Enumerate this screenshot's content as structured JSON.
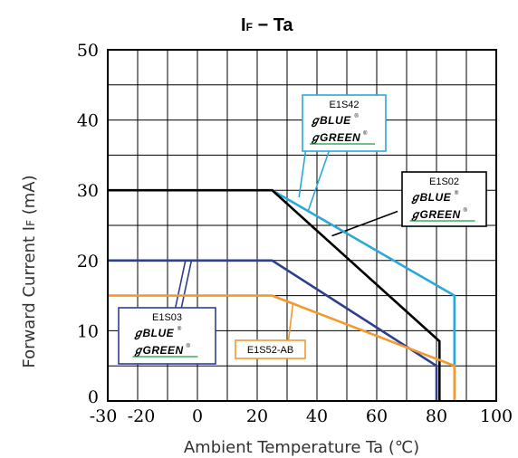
{
  "chart_data": {
    "type": "line",
    "title_main": "I",
    "title_sub": "F",
    "title_rest": " − Ta",
    "xlabel": "Ambient Temperature  Ta (℃)",
    "ylabel_main": "Forward Current  I",
    "ylabel_sub": "F",
    "ylabel_unit": " (mA)",
    "xlim": [
      -30,
      100
    ],
    "ylim": [
      0,
      50
    ],
    "x_ticks": [
      -30,
      -20,
      0,
      20,
      40,
      60,
      80,
      100
    ],
    "x_tick_labels": [
      "-30",
      "-20",
      "0",
      "20",
      "40",
      "60",
      "80",
      "100"
    ],
    "y_ticks": [
      0,
      10,
      20,
      30,
      40,
      50
    ],
    "y_tick_labels": [
      "0",
      "10",
      "20",
      "30",
      "40",
      "50"
    ],
    "x_grid": [
      -30,
      -20,
      -10,
      0,
      10,
      20,
      30,
      40,
      50,
      60,
      70,
      80,
      90,
      100
    ],
    "y_grid": [
      0,
      5,
      10,
      15,
      20,
      25,
      30,
      35,
      40,
      45,
      50
    ],
    "grid": true,
    "series": [
      {
        "name": "E1S42",
        "color": "#2aa8dc",
        "x": [
          25,
          86,
          86
        ],
        "y": [
          30,
          15,
          0
        ]
      },
      {
        "name": "E1S02",
        "color": "#000000",
        "x": [
          -30,
          25,
          81,
          81
        ],
        "y": [
          30,
          30,
          8.5,
          0
        ]
      },
      {
        "name": "E1S03",
        "color": "#2e3f8f",
        "x": [
          -30,
          25,
          80,
          80
        ],
        "y": [
          20,
          20,
          5,
          0
        ]
      },
      {
        "name": "E1S52-AB",
        "color": "#f29a2e",
        "x": [
          -30,
          25,
          86,
          86
        ],
        "y": [
          15,
          15,
          5,
          0
        ]
      }
    ],
    "annotations": [
      {
        "id": "e1s42",
        "color": "#2aa8dc",
        "label": "E1S42",
        "brands": [
          "BLUE",
          "GREEN"
        ],
        "pointers": [
          {
            "from": [
              37,
              38
            ],
            "to": [
              34,
              29
            ]
          },
          {
            "from": [
              46,
              38
            ],
            "to": [
              37,
              27
            ]
          }
        ]
      },
      {
        "id": "e1s02",
        "color": "#000000",
        "label": "E1S02",
        "brands": [
          "BLUE",
          "GREEN"
        ],
        "pointers": [
          {
            "from": [
              67,
              27
            ],
            "to": [
              45,
              23.5
            ]
          }
        ]
      },
      {
        "id": "e1s03",
        "color": "#2e3f8f",
        "label": "E1S03",
        "brands": [
          "BLUE",
          "GREEN"
        ],
        "pointers": [
          {
            "from": [
              -8,
              12
            ],
            "to": [
              -4,
              20
            ]
          },
          {
            "from": [
              -6,
              12
            ],
            "to": [
              -2,
              20
            ]
          }
        ]
      },
      {
        "id": "e1s52",
        "color": "#f29a2e",
        "label": "E1S52-AB",
        "brands": [],
        "pointers": [
          {
            "from": [
              30,
              7
            ],
            "to": [
              32,
              14
            ]
          }
        ]
      }
    ],
    "brand_mark": "ℊ",
    "registered": "®"
  }
}
